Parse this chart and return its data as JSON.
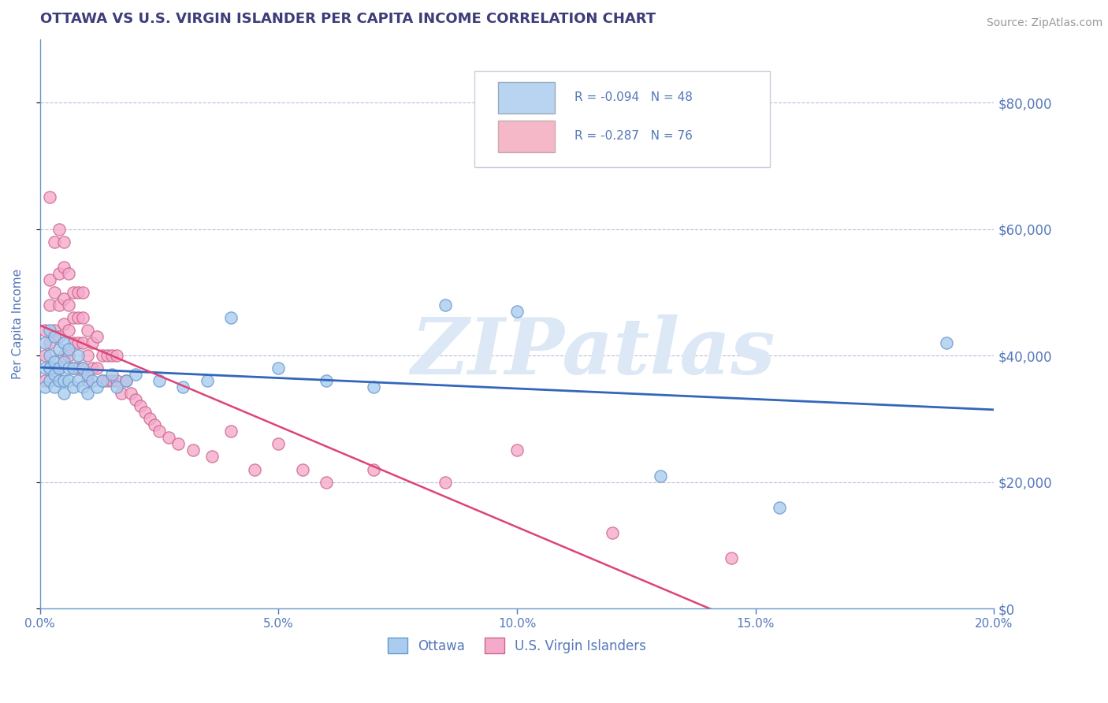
{
  "title": "OTTAWA VS U.S. VIRGIN ISLANDER PER CAPITA INCOME CORRELATION CHART",
  "source_text": "Source: ZipAtlas.com",
  "ylabel": "Per Capita Income",
  "xlim": [
    0.0,
    0.2
  ],
  "ylim": [
    0,
    90000
  ],
  "xtick_labels": [
    "0.0%",
    "5.0%",
    "10.0%",
    "15.0%",
    "20.0%"
  ],
  "xtick_vals": [
    0.0,
    0.05,
    0.1,
    0.15,
    0.2
  ],
  "ytick_vals": [
    0,
    20000,
    40000,
    60000,
    80000
  ],
  "ytick_labels": [
    "$0",
    "$20,000",
    "$40,000",
    "$60,000",
    "$80,000"
  ],
  "title_color": "#3d3d7a",
  "axis_color": "#6699cc",
  "tick_color": "#5577bb",
  "grid_color": "#bbbbdd",
  "watermark_text": "ZIPatlas",
  "watermark_color": "#dce8f5",
  "legend_box_color1": "#b8d4f0",
  "legend_box_color2": "#f5b8c8",
  "series1_color": "#aaccee",
  "series1_edge": "#6699cc",
  "series2_color": "#f5aacc",
  "series2_edge": "#cc6688",
  "trendline1_color": "#3366bb",
  "trendline2_color": "#dd4477",
  "trendline2_dash_color": "#ddaabb",
  "ottawa_x": [
    0.001,
    0.001,
    0.001,
    0.002,
    0.002,
    0.002,
    0.002,
    0.003,
    0.003,
    0.003,
    0.003,
    0.004,
    0.004,
    0.004,
    0.005,
    0.005,
    0.005,
    0.005,
    0.006,
    0.006,
    0.006,
    0.007,
    0.007,
    0.008,
    0.008,
    0.009,
    0.009,
    0.01,
    0.01,
    0.011,
    0.012,
    0.013,
    0.015,
    0.016,
    0.018,
    0.02,
    0.025,
    0.03,
    0.035,
    0.04,
    0.05,
    0.06,
    0.07,
    0.085,
    0.1,
    0.13,
    0.155,
    0.19
  ],
  "ottawa_y": [
    35000,
    38000,
    42000,
    36000,
    38000,
    40000,
    44000,
    35000,
    37000,
    39000,
    43000,
    36000,
    38000,
    41000,
    34000,
    36000,
    39000,
    42000,
    36000,
    38000,
    41000,
    35000,
    38000,
    36000,
    40000,
    35000,
    38000,
    34000,
    37000,
    36000,
    35000,
    36000,
    37000,
    35000,
    36000,
    37000,
    36000,
    35000,
    36000,
    46000,
    38000,
    36000,
    35000,
    48000,
    47000,
    21000,
    16000,
    42000
  ],
  "vi_x": [
    0.001,
    0.001,
    0.001,
    0.002,
    0.002,
    0.002,
    0.002,
    0.002,
    0.003,
    0.003,
    0.003,
    0.003,
    0.004,
    0.004,
    0.004,
    0.004,
    0.004,
    0.005,
    0.005,
    0.005,
    0.005,
    0.005,
    0.006,
    0.006,
    0.006,
    0.006,
    0.007,
    0.007,
    0.007,
    0.007,
    0.008,
    0.008,
    0.008,
    0.008,
    0.009,
    0.009,
    0.009,
    0.009,
    0.01,
    0.01,
    0.01,
    0.011,
    0.011,
    0.012,
    0.012,
    0.013,
    0.013,
    0.014,
    0.014,
    0.015,
    0.015,
    0.016,
    0.016,
    0.017,
    0.018,
    0.019,
    0.02,
    0.021,
    0.022,
    0.023,
    0.024,
    0.025,
    0.027,
    0.029,
    0.032,
    0.036,
    0.04,
    0.045,
    0.05,
    0.055,
    0.06,
    0.07,
    0.085,
    0.1,
    0.12,
    0.145
  ],
  "vi_y": [
    36000,
    40000,
    44000,
    38000,
    42000,
    48000,
    52000,
    65000,
    38000,
    44000,
    50000,
    58000,
    38000,
    43000,
    48000,
    53000,
    60000,
    40000,
    45000,
    49000,
    54000,
    58000,
    40000,
    44000,
    48000,
    53000,
    38000,
    42000,
    46000,
    50000,
    38000,
    42000,
    46000,
    50000,
    38000,
    42000,
    46000,
    50000,
    36000,
    40000,
    44000,
    38000,
    42000,
    38000,
    43000,
    36000,
    40000,
    36000,
    40000,
    36000,
    40000,
    36000,
    40000,
    34000,
    36000,
    34000,
    33000,
    32000,
    31000,
    30000,
    29000,
    28000,
    27000,
    26000,
    25000,
    24000,
    28000,
    22000,
    26000,
    22000,
    20000,
    22000,
    20000,
    25000,
    12000,
    8000
  ]
}
